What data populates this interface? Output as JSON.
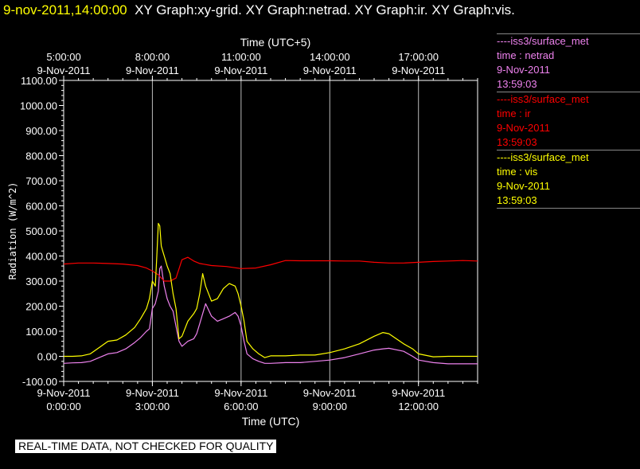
{
  "header": {
    "datetime": "9-nov-2011,14:00:00",
    "graphs": "XY Graph:xy-grid.  XY Graph:netrad.  XY Graph:ir.  XY Graph:vis."
  },
  "legend": [
    {
      "source": "----iss3/surface_met",
      "var": "time : netrad",
      "date": "9-Nov-2011",
      "time": "13:59:03",
      "color": "#ee82ee"
    },
    {
      "source": "----iss3/surface_met",
      "var": "time : ir",
      "date": "9-Nov-2011",
      "time": "13:59:03",
      "color": "#ff0000"
    },
    {
      "source": "----iss3/surface_met",
      "var": "time : vis",
      "date": "9-Nov-2011",
      "time": "13:59:03",
      "color": "#ffff00"
    }
  ],
  "footer": "REAL-TIME DATA, NOT CHECKED FOR QUALITY",
  "chart_data": {
    "type": "line",
    "xlabel": "Time (UTC)",
    "top_xlabel": "Time (UTC+5)",
    "ylabel": "Radiation (W/m^2)",
    "xlim": [
      0,
      14.0
    ],
    "ylim": [
      -100,
      1100
    ],
    "grid": "vertical",
    "x_ticks_bottom": [
      {
        "x": 0,
        "date": "9-Nov-2011",
        "time": "0:00:00"
      },
      {
        "x": 3,
        "date": "9-Nov-2011",
        "time": "3:00:00"
      },
      {
        "x": 6,
        "date": "9-Nov-2011",
        "time": "6:00:00"
      },
      {
        "x": 9,
        "date": "9-Nov-2011",
        "time": "9:00:00"
      },
      {
        "x": 12,
        "date": "9-Nov-2011",
        "time": "12:00:00"
      }
    ],
    "x_ticks_top": [
      {
        "x": 0,
        "time": "5:00:00",
        "date": "9-Nov-2011"
      },
      {
        "x": 3,
        "time": "8:00:00",
        "date": "9-Nov-2011"
      },
      {
        "x": 6,
        "time": "11:00:00",
        "date": "9-Nov-2011"
      },
      {
        "x": 9,
        "time": "14:00:00",
        "date": "9-Nov-2011"
      },
      {
        "x": 12,
        "time": "17:00:00",
        "date": "9-Nov-2011"
      }
    ],
    "y_ticks": [
      "1100.00",
      "1000.00",
      "900.00",
      "800.00",
      "700.00",
      "600.00",
      "500.00",
      "400.00",
      "300.00",
      "200.00",
      "100.00",
      "0.00",
      "-100.00"
    ],
    "y_tick_values": [
      1100,
      1000,
      900,
      800,
      700,
      600,
      500,
      400,
      300,
      200,
      100,
      0,
      -100
    ],
    "series": [
      {
        "name": "netrad",
        "color": "#ee82ee",
        "x": [
          0,
          0.3,
          0.6,
          0.9,
          1.2,
          1.5,
          1.8,
          2.1,
          2.4,
          2.6,
          2.8,
          2.9,
          3.0,
          3.1,
          3.2,
          3.25,
          3.3,
          3.35,
          3.4,
          3.5,
          3.6,
          3.7,
          3.8,
          3.9,
          4.0,
          4.2,
          4.4,
          4.5,
          4.6,
          4.7,
          4.8,
          5.0,
          5.2,
          5.4,
          5.6,
          5.8,
          5.9,
          6.0,
          6.1,
          6.2,
          6.4,
          6.6,
          6.8,
          7.0,
          7.5,
          8.0,
          8.5,
          9.0,
          9.5,
          10.0,
          10.5,
          10.8,
          11.0,
          11.5,
          11.8,
          12.0,
          12.5,
          13.0,
          13.5,
          14.0
        ],
        "y": [
          -28,
          -26,
          -25,
          -20,
          -5,
          10,
          15,
          30,
          55,
          75,
          100,
          110,
          190,
          210,
          260,
          350,
          360,
          320,
          280,
          230,
          200,
          180,
          120,
          60,
          40,
          60,
          70,
          90,
          130,
          170,
          210,
          160,
          140,
          150,
          160,
          175,
          160,
          120,
          60,
          10,
          -10,
          -20,
          -28,
          -28,
          -25,
          -25,
          -20,
          -15,
          -5,
          10,
          25,
          30,
          32,
          20,
          0,
          -15,
          -25,
          -30,
          -30,
          -30
        ]
      },
      {
        "name": "ir",
        "color": "#ff0000",
        "x": [
          0,
          0.5,
          1.0,
          1.5,
          2.0,
          2.5,
          2.8,
          3.0,
          3.2,
          3.4,
          3.6,
          3.8,
          4.0,
          4.2,
          4.4,
          4.6,
          5.0,
          5.5,
          6.0,
          6.5,
          7.0,
          7.5,
          8.0,
          8.5,
          9.0,
          9.5,
          10.0,
          10.5,
          11.0,
          11.5,
          12.0,
          12.5,
          13.0,
          13.5,
          14.0
        ],
        "y": [
          368,
          372,
          372,
          370,
          368,
          362,
          352,
          340,
          325,
          300,
          300,
          312,
          385,
          395,
          380,
          370,
          362,
          358,
          350,
          352,
          365,
          382,
          381,
          381,
          381,
          380,
          380,
          375,
          372,
          372,
          375,
          378,
          380,
          382,
          380
        ]
      },
      {
        "name": "vis",
        "color": "#ffff00",
        "x": [
          0,
          0.3,
          0.6,
          0.9,
          1.2,
          1.5,
          1.8,
          2.1,
          2.4,
          2.6,
          2.8,
          2.9,
          3.0,
          3.1,
          3.15,
          3.2,
          3.25,
          3.3,
          3.35,
          3.4,
          3.5,
          3.6,
          3.7,
          3.8,
          3.9,
          4.0,
          4.2,
          4.4,
          4.5,
          4.6,
          4.7,
          4.8,
          5.0,
          5.2,
          5.4,
          5.6,
          5.8,
          5.9,
          6.0,
          6.1,
          6.2,
          6.4,
          6.6,
          6.8,
          7.0,
          7.5,
          8.0,
          8.5,
          9.0,
          9.5,
          10.0,
          10.5,
          10.8,
          11.0,
          11.5,
          11.8,
          12.0,
          12.5,
          13.0,
          13.5,
          14.0
        ],
        "y": [
          0,
          0,
          2,
          10,
          35,
          60,
          65,
          85,
          115,
          150,
          190,
          230,
          300,
          280,
          400,
          530,
          520,
          440,
          420,
          400,
          360,
          330,
          250,
          190,
          70,
          80,
          140,
          170,
          190,
          250,
          330,
          280,
          220,
          230,
          270,
          290,
          280,
          250,
          200,
          140,
          60,
          30,
          10,
          -5,
          2,
          2,
          5,
          5,
          15,
          30,
          50,
          80,
          95,
          90,
          50,
          30,
          10,
          -2,
          0,
          0,
          0
        ]
      }
    ]
  }
}
